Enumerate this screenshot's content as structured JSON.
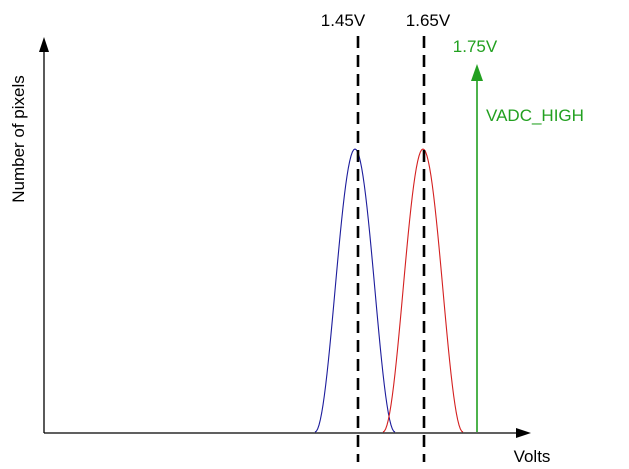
{
  "diagram": {
    "y_axis_label": "Number of pixels",
    "x_axis_label": "Volts",
    "markers": [
      {
        "label": "1.45V",
        "color": "#000000"
      },
      {
        "label": "1.65V",
        "color": "#000000"
      }
    ],
    "threshold": {
      "value_label": "1.75V",
      "name": "VADC_HIGH",
      "color": "#22a020"
    },
    "curves": [
      {
        "color": "#1c1c9c"
      },
      {
        "color": "#d42020"
      }
    ]
  }
}
